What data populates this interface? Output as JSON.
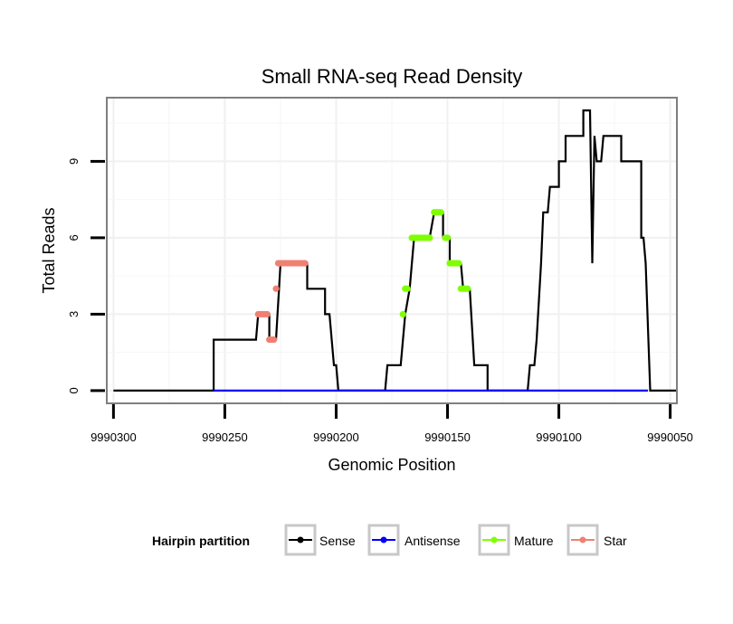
{
  "chart_data": {
    "type": "line",
    "title": "Small RNA-seq Read Density",
    "xlabel": "Genomic Position",
    "ylabel": "Total Reads",
    "x_reversed": true,
    "xlim": [
      9990303,
      9990047
    ],
    "ylim": [
      -0.5,
      11.5
    ],
    "xticks": [
      9990300,
      9990250,
      9990200,
      9990150,
      9990100,
      9990050
    ],
    "xtick_labels": [
      "9990300",
      "9990250",
      "9990200",
      "9990150",
      "9990100",
      "9990050"
    ],
    "yticks": [
      0,
      3,
      6,
      9
    ],
    "ytick_labels": [
      "0",
      "3",
      "6",
      "9"
    ],
    "grid": true,
    "legend": {
      "title": "Hairpin partition",
      "position": "bottom",
      "entries": [
        "Sense",
        "Antisense",
        "Mature",
        "Star"
      ]
    },
    "series": [
      {
        "name": "Sense",
        "color": "#000000",
        "style": "line",
        "points": [
          [
            9990300,
            0
          ],
          [
            9990255,
            0
          ],
          [
            9990255,
            2
          ],
          [
            9990236,
            2
          ],
          [
            9990235,
            3
          ],
          [
            9990230,
            3
          ],
          [
            9990230,
            2
          ],
          [
            9990227,
            2
          ],
          [
            9990225,
            5
          ],
          [
            9990213,
            5
          ],
          [
            9990213,
            4
          ],
          [
            9990205,
            4
          ],
          [
            9990205,
            3
          ],
          [
            9990203,
            3
          ],
          [
            9990201,
            1
          ],
          [
            9990200,
            1
          ],
          [
            9990199,
            0
          ],
          [
            9990178,
            0
          ],
          [
            9990177,
            1
          ],
          [
            9990171,
            1
          ],
          [
            9990169,
            3
          ],
          [
            9990167,
            4
          ],
          [
            9990165,
            6
          ],
          [
            9990158,
            6
          ],
          [
            9990156,
            7
          ],
          [
            9990152,
            7
          ],
          [
            9990152,
            6
          ],
          [
            9990149,
            6
          ],
          [
            9990149,
            5
          ],
          [
            9990144,
            5
          ],
          [
            9990143,
            4
          ],
          [
            9990140,
            4
          ],
          [
            9990138,
            1
          ],
          [
            9990132,
            1
          ],
          [
            9990132,
            0
          ],
          [
            9990114,
            0
          ],
          [
            9990113,
            1
          ],
          [
            9990111,
            1
          ],
          [
            9990110,
            2
          ],
          [
            9990108,
            5
          ],
          [
            9990107,
            7
          ],
          [
            9990105,
            7
          ],
          [
            9990104,
            8
          ],
          [
            9990100,
            8
          ],
          [
            9990100,
            9
          ],
          [
            9990097,
            9
          ],
          [
            9990097,
            10
          ],
          [
            9990089,
            10
          ],
          [
            9990089,
            11
          ],
          [
            9990086,
            11
          ],
          [
            9990085,
            5
          ],
          [
            9990084,
            10
          ],
          [
            9990083,
            9
          ],
          [
            9990081,
            9
          ],
          [
            9990080,
            10
          ],
          [
            9990072,
            10
          ],
          [
            9990072,
            9
          ],
          [
            9990063,
            9
          ],
          [
            9990063,
            6
          ],
          [
            9990062,
            6
          ],
          [
            9990061,
            5
          ],
          [
            9990059,
            0
          ],
          [
            9990047,
            0
          ]
        ]
      },
      {
        "name": "Antisense",
        "color": "#0000ff",
        "style": "line",
        "points": [
          [
            9990255,
            0
          ],
          [
            9990060,
            0
          ]
        ]
      },
      {
        "name": "Mature",
        "color": "#7fff00",
        "style": "points",
        "points": [
          [
            9990170,
            3
          ],
          [
            9990169,
            4
          ],
          [
            9990168,
            4
          ],
          [
            9990166,
            6
          ],
          [
            9990165,
            6
          ],
          [
            9990164,
            6
          ],
          [
            9990163,
            6
          ],
          [
            9990162,
            6
          ],
          [
            9990161,
            6
          ],
          [
            9990160,
            6
          ],
          [
            9990159,
            6
          ],
          [
            9990158,
            6
          ],
          [
            9990156,
            7
          ],
          [
            9990155,
            7
          ],
          [
            9990154,
            7
          ],
          [
            9990153,
            7
          ],
          [
            9990151,
            6
          ],
          [
            9990150,
            6
          ],
          [
            9990149,
            5
          ],
          [
            9990148,
            5
          ],
          [
            9990147,
            5
          ],
          [
            9990146,
            5
          ],
          [
            9990145,
            5
          ],
          [
            9990144,
            4
          ],
          [
            9990143,
            4
          ],
          [
            9990142,
            4
          ],
          [
            9990141,
            4
          ]
        ]
      },
      {
        "name": "Star",
        "color": "#f08072",
        "style": "points",
        "points": [
          [
            9990235,
            3
          ],
          [
            9990234,
            3
          ],
          [
            9990233,
            3
          ],
          [
            9990232,
            3
          ],
          [
            9990231,
            3
          ],
          [
            9990230,
            2
          ],
          [
            9990229,
            2
          ],
          [
            9990228,
            2
          ],
          [
            9990227,
            4
          ],
          [
            9990226,
            5
          ],
          [
            9990225,
            5
          ],
          [
            9990224,
            5
          ],
          [
            9990223,
            5
          ],
          [
            9990222,
            5
          ],
          [
            9990221,
            5
          ],
          [
            9990220,
            5
          ],
          [
            9990219,
            5
          ],
          [
            9990218,
            5
          ],
          [
            9990217,
            5
          ],
          [
            9990216,
            5
          ],
          [
            9990215,
            5
          ],
          [
            9990214,
            5
          ]
        ]
      }
    ]
  }
}
